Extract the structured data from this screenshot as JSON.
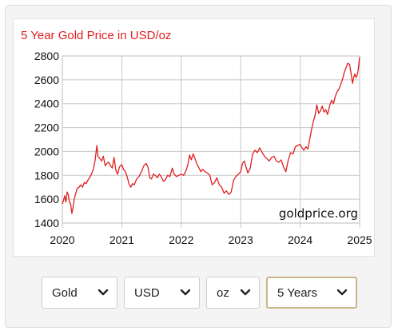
{
  "chart_data": {
    "type": "line",
    "title": "5 Year Gold Price in USD/oz",
    "watermark": "goldprice.org",
    "line_color": "#e02020",
    "title_color": "#e02020",
    "grid": true,
    "xlim": [
      2020,
      2025
    ],
    "ylim": [
      1400,
      2800
    ],
    "x_ticks": [
      2020,
      2021,
      2022,
      2023,
      2024,
      2025
    ],
    "y_ticks": [
      1400,
      1600,
      1800,
      2000,
      2200,
      2400,
      2600,
      2800
    ],
    "series": [
      {
        "values": [
          [
            2020.0,
            1560
          ],
          [
            2020.02,
            1590
          ],
          [
            2020.04,
            1630
          ],
          [
            2020.06,
            1575
          ],
          [
            2020.08,
            1660
          ],
          [
            2020.1,
            1640
          ],
          [
            2020.12,
            1575
          ],
          [
            2020.14,
            1560
          ],
          [
            2020.16,
            1480
          ],
          [
            2020.18,
            1530
          ],
          [
            2020.2,
            1600
          ],
          [
            2020.22,
            1640
          ],
          [
            2020.25,
            1690
          ],
          [
            2020.28,
            1700
          ],
          [
            2020.31,
            1720
          ],
          [
            2020.34,
            1700
          ],
          [
            2020.37,
            1740
          ],
          [
            2020.4,
            1730
          ],
          [
            2020.43,
            1760
          ],
          [
            2020.46,
            1780
          ],
          [
            2020.49,
            1810
          ],
          [
            2020.52,
            1850
          ],
          [
            2020.55,
            1920
          ],
          [
            2020.58,
            2050
          ],
          [
            2020.6,
            1960
          ],
          [
            2020.63,
            1940
          ],
          [
            2020.66,
            1920
          ],
          [
            2020.69,
            1960
          ],
          [
            2020.72,
            1880
          ],
          [
            2020.75,
            1900
          ],
          [
            2020.78,
            1910
          ],
          [
            2020.81,
            1880
          ],
          [
            2020.84,
            1860
          ],
          [
            2020.87,
            1950
          ],
          [
            2020.9,
            1840
          ],
          [
            2020.93,
            1810
          ],
          [
            2020.96,
            1870
          ],
          [
            2021.0,
            1890
          ],
          [
            2021.03,
            1850
          ],
          [
            2021.06,
            1830
          ],
          [
            2021.09,
            1790
          ],
          [
            2021.12,
            1730
          ],
          [
            2021.15,
            1700
          ],
          [
            2021.18,
            1730
          ],
          [
            2021.21,
            1720
          ],
          [
            2021.25,
            1770
          ],
          [
            2021.29,
            1790
          ],
          [
            2021.33,
            1830
          ],
          [
            2021.37,
            1880
          ],
          [
            2021.41,
            1900
          ],
          [
            2021.44,
            1870
          ],
          [
            2021.47,
            1780
          ],
          [
            2021.5,
            1770
          ],
          [
            2021.53,
            1810
          ],
          [
            2021.56,
            1800
          ],
          [
            2021.6,
            1780
          ],
          [
            2021.63,
            1810
          ],
          [
            2021.66,
            1790
          ],
          [
            2021.7,
            1750
          ],
          [
            2021.73,
            1760
          ],
          [
            2021.77,
            1800
          ],
          [
            2021.81,
            1790
          ],
          [
            2021.85,
            1860
          ],
          [
            2021.88,
            1810
          ],
          [
            2021.92,
            1790
          ],
          [
            2021.96,
            1800
          ],
          [
            2022.0,
            1810
          ],
          [
            2022.04,
            1800
          ],
          [
            2022.08,
            1840
          ],
          [
            2022.11,
            1890
          ],
          [
            2022.14,
            1970
          ],
          [
            2022.17,
            1930
          ],
          [
            2022.2,
            1980
          ],
          [
            2022.23,
            1940
          ],
          [
            2022.26,
            1900
          ],
          [
            2022.3,
            1860
          ],
          [
            2022.33,
            1830
          ],
          [
            2022.36,
            1850
          ],
          [
            2022.4,
            1830
          ],
          [
            2022.44,
            1820
          ],
          [
            2022.48,
            1800
          ],
          [
            2022.52,
            1720
          ],
          [
            2022.56,
            1740
          ],
          [
            2022.6,
            1780
          ],
          [
            2022.64,
            1720
          ],
          [
            2022.68,
            1700
          ],
          [
            2022.72,
            1650
          ],
          [
            2022.76,
            1670
          ],
          [
            2022.8,
            1640
          ],
          [
            2022.84,
            1660
          ],
          [
            2022.88,
            1760
          ],
          [
            2022.92,
            1790
          ],
          [
            2022.96,
            1810
          ],
          [
            2023.0,
            1830
          ],
          [
            2023.03,
            1900
          ],
          [
            2023.06,
            1920
          ],
          [
            2023.09,
            1870
          ],
          [
            2023.12,
            1820
          ],
          [
            2023.16,
            1860
          ],
          [
            2023.2,
            1980
          ],
          [
            2023.24,
            2010
          ],
          [
            2023.28,
            1990
          ],
          [
            2023.32,
            2030
          ],
          [
            2023.36,
            1990
          ],
          [
            2023.4,
            1960
          ],
          [
            2023.44,
            1940
          ],
          [
            2023.48,
            1920
          ],
          [
            2023.52,
            1950
          ],
          [
            2023.56,
            1960
          ],
          [
            2023.6,
            1920
          ],
          [
            2023.64,
            1910
          ],
          [
            2023.68,
            1930
          ],
          [
            2023.72,
            1870
          ],
          [
            2023.76,
            1830
          ],
          [
            2023.8,
            1930
          ],
          [
            2023.84,
            1990
          ],
          [
            2023.88,
            1980
          ],
          [
            2023.92,
            2040
          ],
          [
            2023.96,
            2050
          ],
          [
            2024.0,
            2060
          ],
          [
            2024.03,
            2030
          ],
          [
            2024.06,
            2010
          ],
          [
            2024.1,
            2040
          ],
          [
            2024.13,
            2020
          ],
          [
            2024.16,
            2100
          ],
          [
            2024.19,
            2180
          ],
          [
            2024.22,
            2250
          ],
          [
            2024.25,
            2300
          ],
          [
            2024.28,
            2390
          ],
          [
            2024.31,
            2320
          ],
          [
            2024.34,
            2340
          ],
          [
            2024.37,
            2380
          ],
          [
            2024.4,
            2330
          ],
          [
            2024.43,
            2350
          ],
          [
            2024.46,
            2310
          ],
          [
            2024.5,
            2390
          ],
          [
            2024.53,
            2430
          ],
          [
            2024.56,
            2400
          ],
          [
            2024.59,
            2460
          ],
          [
            2024.62,
            2500
          ],
          [
            2024.65,
            2520
          ],
          [
            2024.68,
            2560
          ],
          [
            2024.71,
            2600
          ],
          [
            2024.74,
            2660
          ],
          [
            2024.77,
            2700
          ],
          [
            2024.8,
            2740
          ],
          [
            2024.83,
            2730
          ],
          [
            2024.86,
            2640
          ],
          [
            2024.88,
            2570
          ],
          [
            2024.9,
            2620
          ],
          [
            2024.92,
            2650
          ],
          [
            2024.94,
            2620
          ],
          [
            2024.96,
            2640
          ],
          [
            2024.98,
            2700
          ],
          [
            2025.0,
            2790
          ]
        ]
      }
    ]
  },
  "controls": {
    "metal": "Gold",
    "currency": "USD",
    "unit": "oz",
    "period": "5 Years"
  }
}
